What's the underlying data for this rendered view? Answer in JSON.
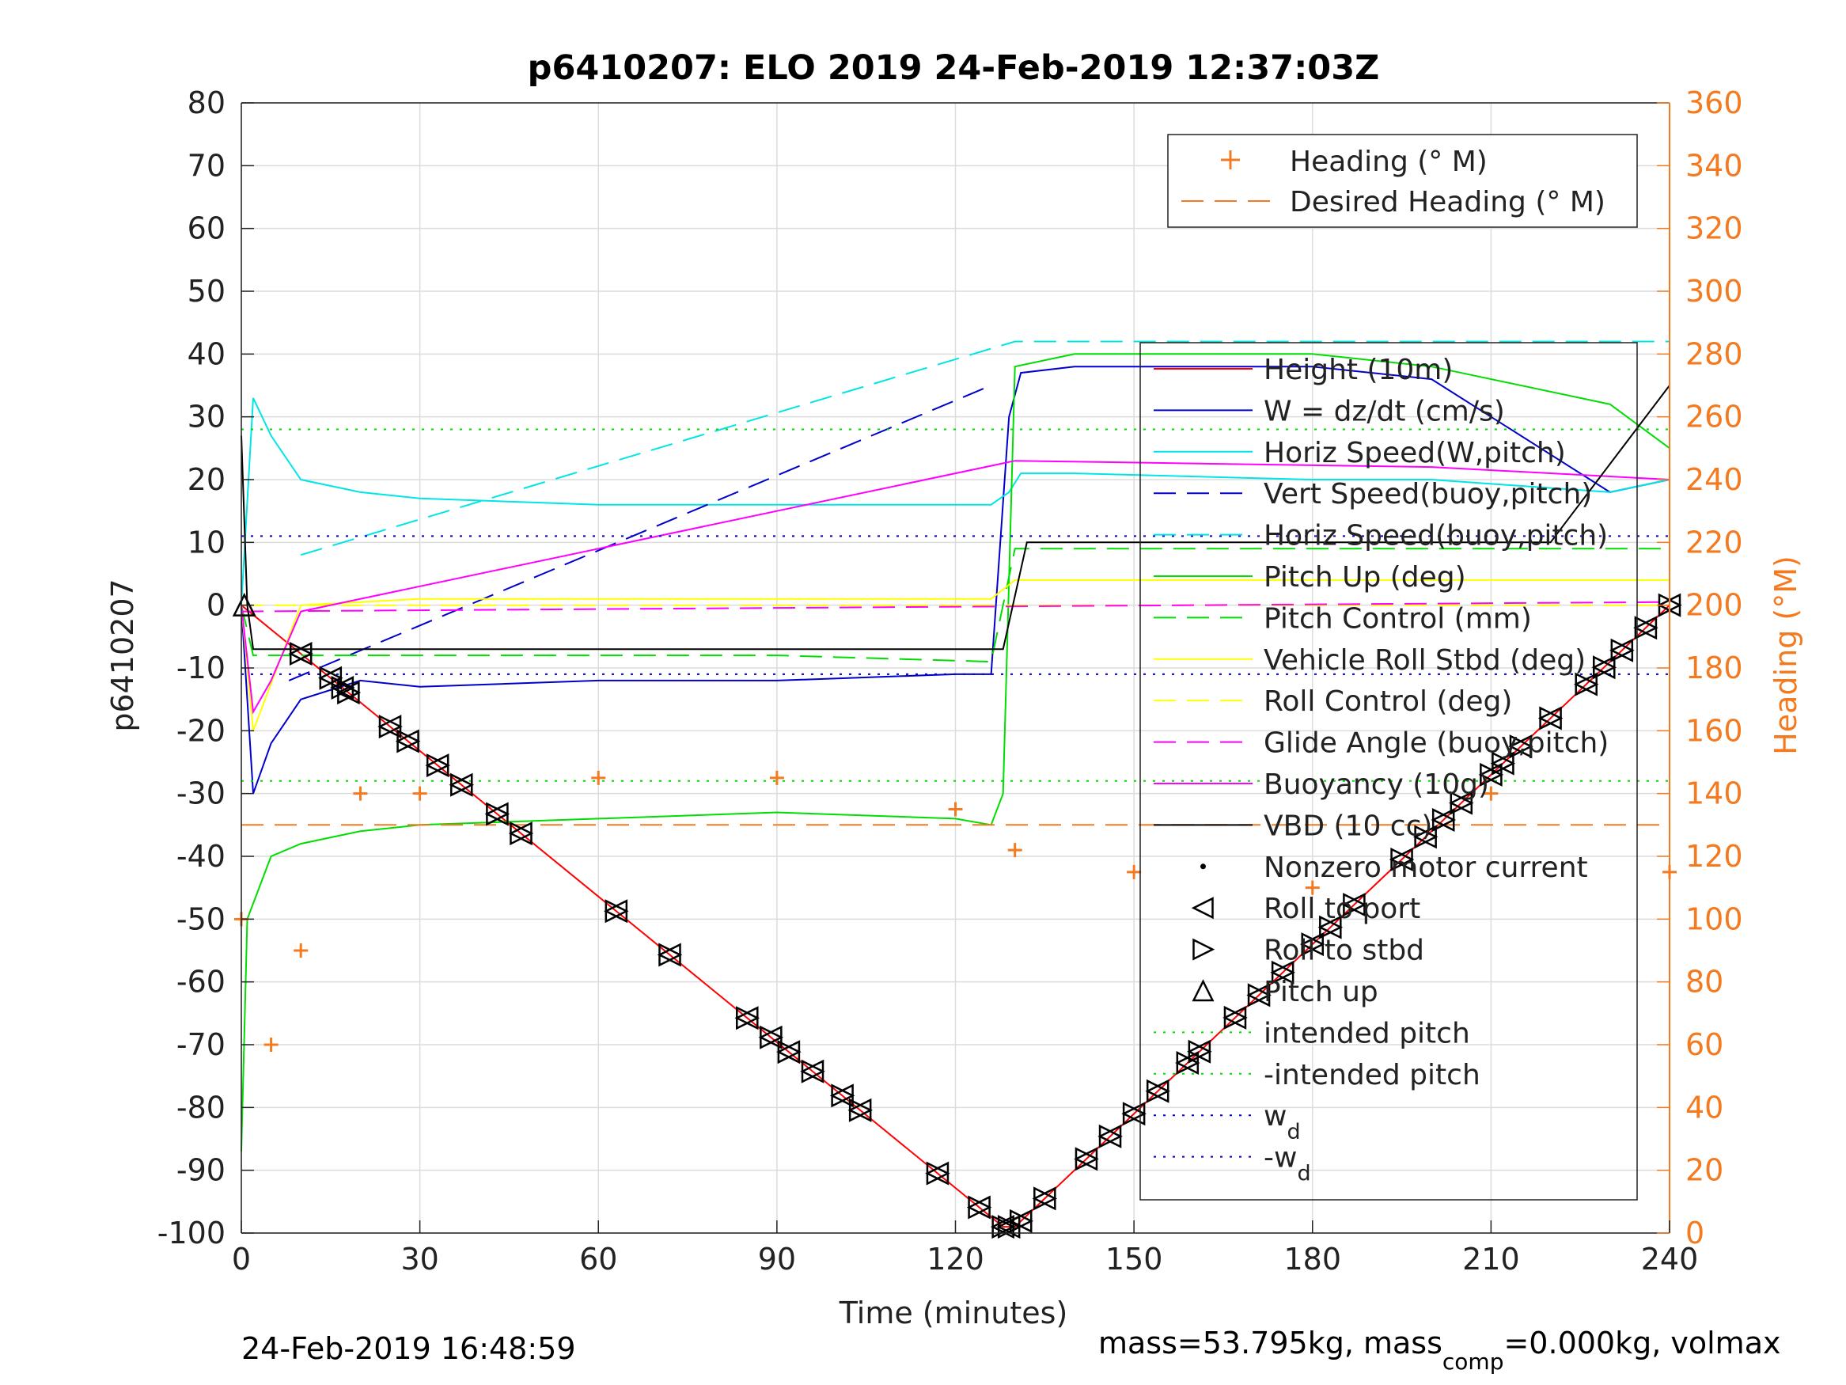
{
  "title": "p6410207: ELO 2019 24-Feb-2019 12:37:03Z",
  "footer": {
    "timestamp": "24-Feb-2019 16:48:59",
    "mass_prefix": "mass=53.795kg, mass",
    "mass_sub": "comp",
    "mass_suffix": "=0.000kg, volmax"
  },
  "colors": {
    "heading": "#f47a20",
    "height": "#ff0000",
    "w": "#0000cc",
    "horiz": "#00e5e5",
    "pitch": "#00dd00",
    "roll": "#ffff00",
    "glide": "#ff00ff",
    "vbd": "#000000",
    "grid": "#dcdcdc"
  },
  "chart_data": {
    "type": "line",
    "xlabel": "Time (minutes)",
    "ylabel": "p6410207",
    "ylabel_right": "Heading (°M)",
    "xlim": [
      0,
      240
    ],
    "ylim": [
      -100,
      80
    ],
    "ylim_right": [
      0,
      360
    ],
    "x_ticks": [
      0,
      30,
      60,
      90,
      120,
      150,
      180,
      210,
      240
    ],
    "y_ticks": [
      80,
      70,
      60,
      50,
      40,
      30,
      20,
      10,
      0,
      -10,
      -20,
      -30,
      -40,
      -50,
      -60,
      -70,
      -80,
      -90,
      -100
    ],
    "y_ticks_right": [
      360,
      340,
      320,
      300,
      280,
      260,
      240,
      220,
      200,
      180,
      160,
      140,
      120,
      100,
      80,
      60,
      40,
      20,
      0
    ],
    "grid": true,
    "legend_top": {
      "placement": "top-right",
      "entries": [
        "Heading (° M)",
        "Desired Heading (° M)"
      ]
    },
    "legend_main": {
      "placement": "right",
      "entries": [
        "Height (10m)",
        "W = dz/dt (cm/s)",
        "Horiz Speed(W,pitch)",
        "Vert Speed(buoy,pitch)",
        "Horiz Speed(buoy,pitch)",
        "Pitch Up (deg)",
        "Pitch Control (mm)",
        "Vehicle Roll Stbd (deg)",
        "Roll Control (deg)",
        "Glide Angle (buoy,pitch)",
        "Buoyancy (10g)",
        "VBD (10 cc)",
        "Nonzero motor current",
        "Roll to port",
        "Roll to stbd",
        "Pitch up",
        "intended pitch",
        "-intended pitch",
        "w",
        "-w"
      ],
      "subscripts": [
        "d",
        "d"
      ]
    },
    "series": [
      {
        "name": "Height (10m)",
        "x": [
          0,
          128,
          130,
          240
        ],
        "y": [
          0,
          -99,
          -99,
          0
        ]
      },
      {
        "name": "W = dz/dt (cm/s)",
        "x": [
          0,
          2,
          5,
          10,
          20,
          30,
          60,
          90,
          120,
          126,
          129,
          131,
          140,
          180,
          200,
          230,
          240
        ],
        "y": [
          0,
          -30,
          -22,
          -15,
          -12,
          -13,
          -12,
          -12,
          -11,
          -11,
          30,
          37,
          38,
          38,
          36,
          18,
          20
        ]
      },
      {
        "name": "Horiz Speed(W,pitch)",
        "x": [
          0,
          2,
          5,
          10,
          20,
          30,
          60,
          90,
          120,
          126,
          129,
          131,
          140,
          180,
          200,
          230,
          240
        ],
        "y": [
          0,
          33,
          27,
          20,
          18,
          17,
          16,
          16,
          16,
          16,
          18,
          21,
          21,
          20,
          20,
          18,
          20
        ]
      },
      {
        "name": "Vert Speed(buoy,pitch)",
        "x": [
          8,
          126
        ],
        "y": [
          -12,
          35
        ]
      },
      {
        "name": "Horiz Speed(buoy,pitch)",
        "x": [
          10,
          130,
          240
        ],
        "y": [
          8,
          42,
          42
        ]
      },
      {
        "name": "Pitch Up (deg)",
        "x": [
          0,
          1,
          5,
          10,
          20,
          30,
          60,
          90,
          120,
          126,
          128,
          130,
          140,
          180,
          200,
          230,
          240
        ],
        "y": [
          -87,
          -50,
          -40,
          -38,
          -36,
          -35,
          -34,
          -33,
          -34,
          -35,
          -30,
          38,
          40,
          40,
          38,
          32,
          25
        ]
      },
      {
        "name": "Pitch Control (mm)",
        "x": [
          0,
          2,
          30,
          60,
          90,
          126,
          130,
          240
        ],
        "y": [
          0,
          -8,
          -8,
          -8,
          -8,
          -9,
          9,
          9
        ]
      },
      {
        "name": "Vehicle Roll Stbd (deg)",
        "x": [
          0,
          2,
          10,
          30,
          60,
          90,
          120,
          126,
          130,
          140,
          180,
          220,
          240
        ],
        "y": [
          0,
          -20,
          0,
          1,
          1,
          1,
          1,
          1,
          4,
          4,
          4,
          4,
          4
        ]
      },
      {
        "name": "Roll Control (deg)",
        "x": [
          0,
          240
        ],
        "y": [
          0,
          0
        ]
      },
      {
        "name": "Glide Angle (buoy,pitch)",
        "x": [
          0,
          240
        ],
        "y": [
          -1,
          0.5
        ]
      },
      {
        "name": "Buoyancy (10g)",
        "x": [
          0,
          2,
          5,
          10,
          130,
          200,
          240
        ],
        "y": [
          0,
          -17,
          -12,
          -1,
          23,
          22,
          20
        ]
      },
      {
        "name": "VBD (10 cc)",
        "x": [
          0,
          1,
          2,
          126,
          128,
          132,
          220,
          240
        ],
        "y": [
          27,
          0,
          -7,
          -7,
          -7,
          10,
          10,
          35
        ]
      },
      {
        "name": "intended pitch",
        "x": [
          0,
          240
        ],
        "y": [
          28,
          28
        ]
      },
      {
        "name": "-intended pitch",
        "x": [
          0,
          240
        ],
        "y": [
          -28,
          -28
        ]
      },
      {
        "name": "w",
        "x": [
          0,
          240
        ],
        "y": [
          11,
          11
        ]
      },
      {
        "name": "-w",
        "x": [
          0,
          240
        ],
        "y": [
          -11,
          -11
        ]
      },
      {
        "name": "Desired Heading (° M)",
        "axis": "right",
        "x": [
          0,
          240
        ],
        "y": [
          130,
          130
        ]
      },
      {
        "name": "Heading (° M)",
        "axis": "right",
        "x": [
          0,
          5,
          10,
          20,
          30,
          60,
          90,
          120,
          130,
          150,
          180,
          210,
          240
        ],
        "y": [
          100,
          60,
          90,
          140,
          140,
          145,
          145,
          135,
          122,
          115,
          110,
          140,
          115
        ]
      }
    ],
    "roll_markers_x": [
      10,
      15,
      17,
      18,
      25,
      28,
      33,
      37,
      43,
      47,
      63,
      72,
      85,
      89,
      92,
      96,
      101,
      104,
      117,
      124,
      128,
      129,
      131,
      135,
      142,
      146,
      150,
      154,
      159,
      161,
      167,
      171,
      175,
      180,
      183,
      187,
      195,
      199,
      202,
      205,
      210,
      212,
      215,
      220,
      226,
      229,
      232,
      236,
      240
    ]
  }
}
